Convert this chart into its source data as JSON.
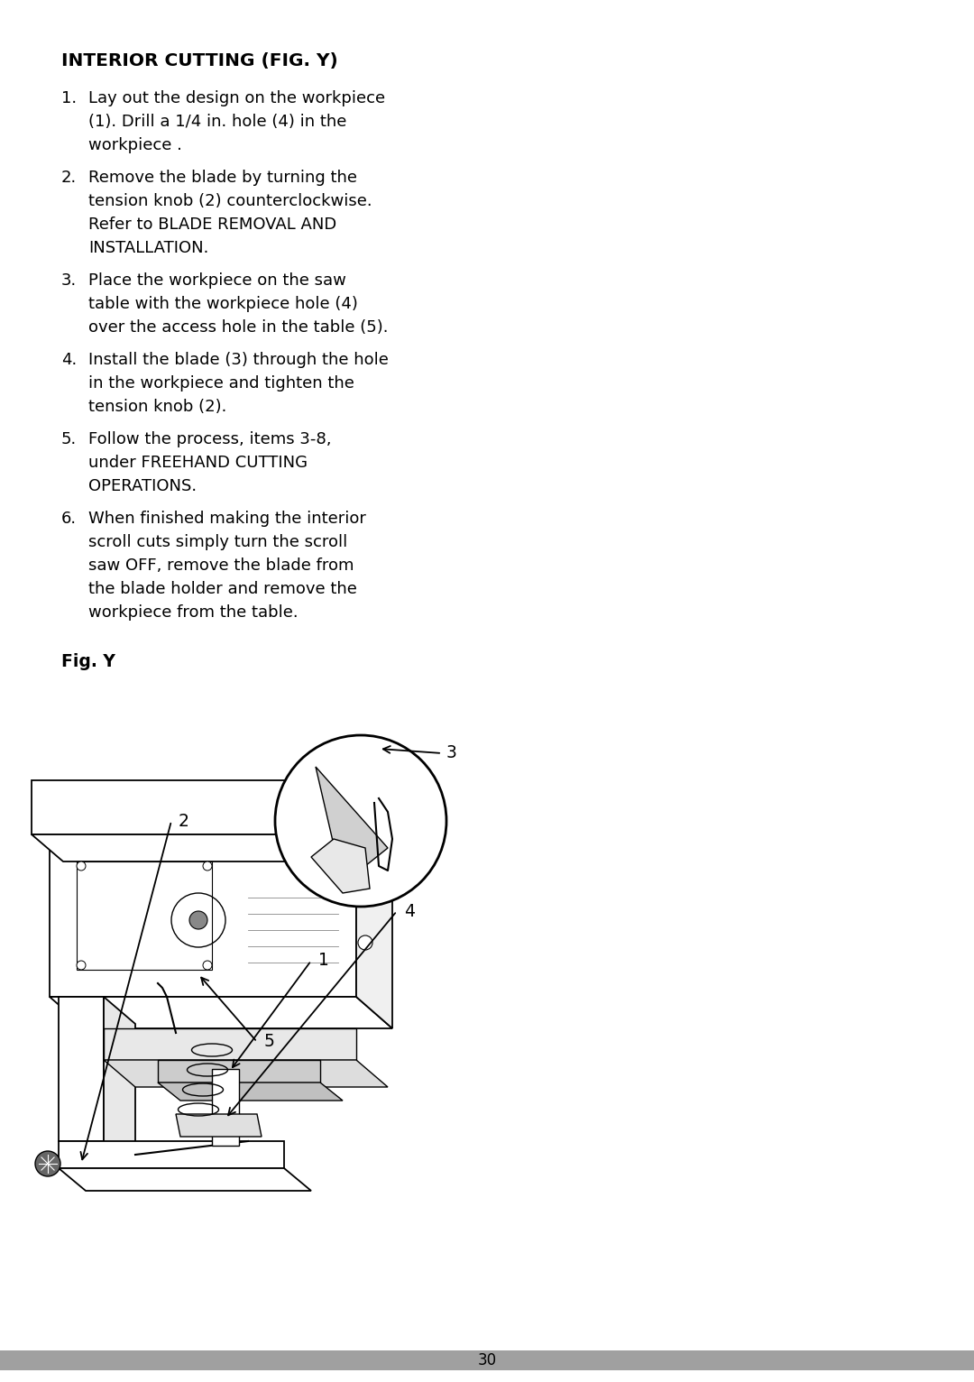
{
  "background_color": "#ffffff",
  "page_number": "30",
  "title": "INTERIOR CUTTING (FIG. Y)",
  "instructions": [
    {
      "number": "1.",
      "lines": [
        "Lay out the design on the workpiece",
        "   (1). Drill a 1/4 in. hole (4) in the",
        "   workpiece ."
      ]
    },
    {
      "number": "2.",
      "lines": [
        "Remove the blade by turning the",
        "   tension knob (2) counterclockwise.",
        "   Refer to BLADE REMOVAL AND",
        "   INSTALLATION."
      ]
    },
    {
      "number": "3.",
      "lines": [
        "Place the workpiece on the saw",
        "   table with the workpiece hole (4)",
        "   over the access hole in the table (5)."
      ]
    },
    {
      "number": "4.",
      "lines": [
        "Install the blade (3) through the hole",
        "   in the workpiece and tighten the",
        "   tension knob (2)."
      ]
    },
    {
      "number": "5.",
      "lines": [
        "Follow the process, items 3-8,",
        "   under FREEHAND CUTTING",
        "   OPERATIONS."
      ]
    },
    {
      "number": "6.",
      "lines": [
        "When finished making the interior",
        "   scroll cuts simply turn the scroll",
        "   saw OFF, remove the blade from",
        "   the blade holder and remove the",
        "   workpiece from the table."
      ]
    }
  ],
  "fig_label": "Fig. Y",
  "text_color": "#000000",
  "footer_bar_color": "#a0a0a0",
  "font_size_title": 14.5,
  "font_size_body": 13.0,
  "font_size_fig": 13.5,
  "font_size_callout": 13.5,
  "font_size_page": 12
}
